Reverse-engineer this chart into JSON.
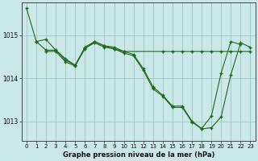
{
  "title": "Graphe pression niveau de la mer (hPa)",
  "background_color": "#cbe8e8",
  "grid_color": "#a0c8c8",
  "line_color": "#1a6b1a",
  "xlim": [
    -0.5,
    23.5
  ],
  "ylim": [
    1012.55,
    1015.75
  ],
  "yticks": [
    1013,
    1014,
    1015
  ],
  "xticks": [
    0,
    1,
    2,
    3,
    4,
    5,
    6,
    7,
    8,
    9,
    10,
    11,
    12,
    13,
    14,
    15,
    16,
    17,
    18,
    19,
    20,
    21,
    22,
    23
  ],
  "lines": [
    {
      "x": [
        0,
        1,
        2,
        3,
        4,
        5,
        6,
        7,
        8,
        9,
        10,
        11,
        12,
        13,
        14,
        15,
        16,
        17,
        18,
        19,
        20,
        21,
        22
      ],
      "y": [
        1015.62,
        1014.85,
        1014.9,
        1014.65,
        1014.45,
        1014.3,
        1014.72,
        1014.85,
        1014.75,
        1014.72,
        1014.62,
        1014.55,
        1014.22,
        1013.8,
        1013.6,
        1013.35,
        1013.35,
        1013.0,
        1012.83,
        1013.12,
        1014.12,
        1014.85,
        1014.78
      ]
    },
    {
      "x": [
        1,
        2,
        3,
        4,
        5,
        6,
        7,
        8,
        9,
        10,
        14,
        15,
        16,
        17,
        18,
        19,
        20,
        21,
        22,
        23
      ],
      "y": [
        1014.85,
        1014.65,
        1014.65,
        1014.42,
        1014.3,
        1014.68,
        1014.85,
        1014.75,
        1014.68,
        1014.62,
        1014.62,
        1014.62,
        1014.62,
        1014.62,
        1014.62,
        1014.62,
        1014.62,
        1014.62,
        1014.62,
        1014.62
      ]
    },
    {
      "x": [
        2,
        3,
        4,
        5,
        6,
        7,
        8,
        9,
        10,
        11,
        12,
        13,
        14,
        15,
        16,
        17,
        18,
        19,
        20,
        21,
        22,
        23
      ],
      "y": [
        1014.62,
        1014.62,
        1014.38,
        1014.28,
        1014.7,
        1014.82,
        1014.72,
        1014.68,
        1014.58,
        1014.52,
        1014.18,
        1013.75,
        1013.58,
        1013.32,
        1013.32,
        1012.98,
        1012.82,
        1012.85,
        1013.1,
        1014.08,
        1014.82,
        1014.72
      ]
    }
  ],
  "tick_fontsize": 5,
  "xlabel_fontsize": 6,
  "figsize": [
    3.2,
    2.0
  ],
  "dpi": 100
}
